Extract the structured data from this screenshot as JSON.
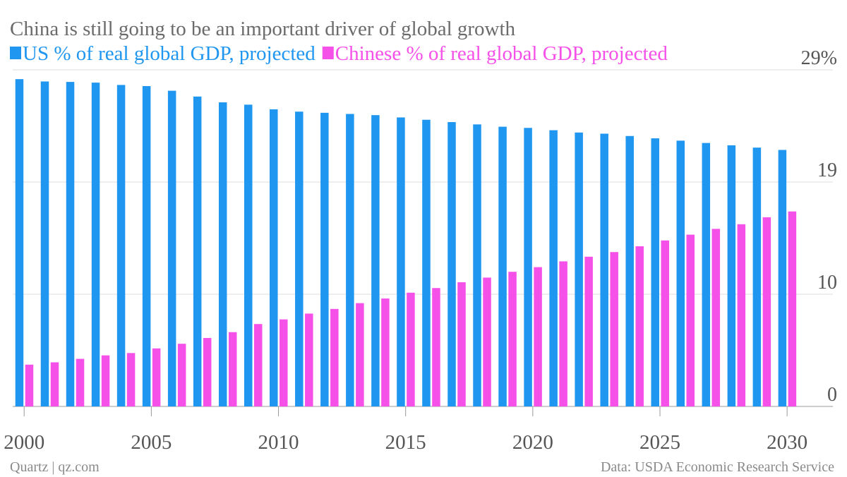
{
  "chart_data": {
    "type": "bar",
    "title": "China is still going to be an important driver of global growth",
    "source": "Data: USDA Economic Research Service",
    "credit": "Quartz | qz.com",
    "x": [
      2000,
      2001,
      2002,
      2003,
      2004,
      2005,
      2006,
      2007,
      2008,
      2009,
      2010,
      2011,
      2012,
      2013,
      2014,
      2015,
      2016,
      2017,
      2018,
      2019,
      2020,
      2021,
      2022,
      2023,
      2024,
      2025,
      2026,
      2027,
      2028,
      2029,
      2030
    ],
    "xlim": [
      1999.55,
      2031.8
    ],
    "xticks": [
      2000,
      2005,
      2010,
      2015,
      2020,
      2025,
      2030
    ],
    "ylim": [
      0,
      29
    ],
    "yticks": [
      0,
      {
        "value": 9.667,
        "label": "10"
      },
      {
        "value": 19.333,
        "label": "19"
      },
      {
        "value": 29,
        "label": "29%"
      }
    ],
    "grid": true,
    "series": [
      {
        "name": "US % of real global GDP, projected",
        "color": "#1f96f0",
        "values": [
          28.2,
          28.0,
          27.96,
          27.9,
          27.7,
          27.6,
          27.2,
          26.7,
          26.2,
          26.0,
          25.6,
          25.4,
          25.3,
          25.2,
          25.1,
          24.9,
          24.7,
          24.5,
          24.3,
          24.1,
          24.0,
          23.8,
          23.6,
          23.5,
          23.3,
          23.1,
          22.9,
          22.7,
          22.5,
          22.3,
          22.1
        ]
      },
      {
        "name": "Chinese % of real global GDP, projected",
        "color": "#f550e8",
        "values": [
          3.6,
          3.8,
          4.1,
          4.4,
          4.6,
          5.0,
          5.4,
          5.9,
          6.4,
          7.1,
          7.5,
          8.0,
          8.4,
          8.9,
          9.3,
          9.8,
          10.2,
          10.7,
          11.1,
          11.6,
          12.0,
          12.5,
          12.9,
          13.3,
          13.8,
          14.3,
          14.8,
          15.3,
          15.7,
          16.3,
          16.8
        ]
      }
    ]
  }
}
